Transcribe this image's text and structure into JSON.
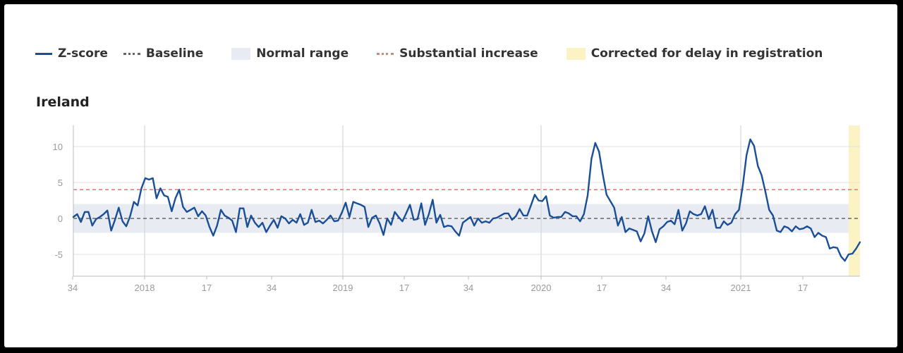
{
  "legend": {
    "zscore": "Z-score",
    "baseline": "Baseline",
    "normal_range": "Normal range",
    "substantial": "Substantial increase",
    "corrected": "Corrected for delay in registration"
  },
  "colors": {
    "zscore": "#1a4e96",
    "baseline": "#666666",
    "normal_range": "#e8ecf2",
    "substantial": "#e07f7f",
    "corrected": "#fbf3c4"
  },
  "chart_data": {
    "type": "line",
    "title": "Ireland",
    "x_tick_labels": [
      "34",
      "2018",
      "17",
      "34",
      "2019",
      "17",
      "34",
      "2020",
      "17",
      "34",
      "2021",
      "17"
    ],
    "y_tick_labels": [
      "10",
      "5",
      "0",
      "-5"
    ],
    "y_ticks": [
      10,
      5,
      0,
      -5
    ],
    "ylim": [
      -8,
      13
    ],
    "baseline": 0,
    "normal_range": [
      -2,
      2
    ],
    "substantial_increase": 4,
    "series": [
      {
        "name": "Z-score",
        "values": [
          0.2,
          0.6,
          -0.5,
          0.9,
          0.9,
          -1.0,
          -0.1,
          0.2,
          0.6,
          1.1,
          -1.7,
          -0.2,
          1.5,
          -0.4,
          -1.1,
          0.3,
          2.3,
          1.8,
          4.2,
          5.6,
          5.4,
          5.6,
          2.8,
          4.2,
          3.2,
          3.0,
          1.0,
          2.8,
          4.0,
          1.6,
          0.9,
          1.2,
          1.5,
          0.3,
          1.0,
          0.4,
          -1.2,
          -2.4,
          -1.0,
          1.2,
          0.4,
          0.1,
          -0.3,
          -1.9,
          1.4,
          1.4,
          -1.2,
          0.4,
          -0.6,
          -1.2,
          -0.6,
          -1.9,
          -1.0,
          -0.2,
          -1.3,
          0.3,
          0.0,
          -0.7,
          -0.2,
          -0.6,
          0.6,
          -0.9,
          -0.6,
          1.2,
          -0.5,
          -0.3,
          -0.7,
          -0.2,
          0.4,
          -0.4,
          -0.3,
          0.8,
          2.2,
          0.2,
          2.3,
          2.1,
          1.9,
          1.6,
          -1.2,
          0.1,
          0.4,
          -0.7,
          -2.3,
          0.0,
          -0.9,
          0.9,
          0.2,
          -0.4,
          0.7,
          1.9,
          -0.2,
          -0.1,
          2.1,
          -0.9,
          0.6,
          2.6,
          -0.6,
          0.5,
          -1.2,
          -1.0,
          -1.1,
          -1.8,
          -2.4,
          -0.6,
          -0.2,
          0.2,
          -1.0,
          0.0,
          -0.6,
          -0.4,
          -0.6,
          0.0,
          0.1,
          0.4,
          0.7,
          0.7,
          -0.2,
          0.3,
          1.3,
          0.4,
          0.4,
          1.8,
          3.3,
          2.5,
          2.4,
          3.1,
          0.4,
          0.1,
          0.2,
          0.2,
          0.9,
          0.7,
          0.3,
          0.3,
          -0.4,
          0.6,
          3.2,
          8.3,
          10.5,
          9.3,
          6.1,
          3.3,
          2.4,
          1.5,
          -1.0,
          0.2,
          -1.9,
          -1.4,
          -1.6,
          -1.8,
          -3.2,
          -2.1,
          0.3,
          -1.8,
          -3.3,
          -1.5,
          -1.1,
          -0.5,
          -0.3,
          -0.8,
          1.2,
          -1.7,
          -0.7,
          1.0,
          0.6,
          0.4,
          0.6,
          1.7,
          -0.1,
          1.2,
          -1.3,
          -1.3,
          -0.4,
          -0.9,
          -0.6,
          0.6,
          1.2,
          4.5,
          8.8,
          11.0,
          10.1,
          7.3,
          6.0,
          3.7,
          1.2,
          0.4,
          -1.7,
          -1.9,
          -1.1,
          -1.3,
          -1.8,
          -1.1,
          -1.5,
          -1.4,
          -1.1,
          -1.4,
          -2.6,
          -2.0,
          -2.4,
          -2.6,
          -4.2,
          -4.0,
          -4.1,
          -5.3,
          -5.9,
          -5.0,
          -4.9,
          -4.2,
          -3.3
        ]
      }
    ]
  }
}
